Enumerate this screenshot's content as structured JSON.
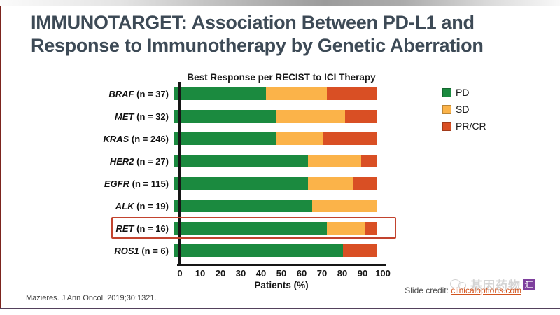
{
  "slide": {
    "title_line1": "IMMUNOTARGET: Association Between PD-L1 and",
    "title_line2": "Response to Immunotherapy by Genetic Aberration",
    "title_color": "#3d4a56"
  },
  "chart_data": {
    "type": "bar",
    "orientation": "horizontal",
    "stacked": true,
    "title": "Best Response per RECIST to ICI Therapy",
    "xlabel": "Patients (%)",
    "xlim": [
      0,
      100
    ],
    "x_ticks": [
      0,
      10,
      20,
      30,
      40,
      50,
      60,
      70,
      80,
      90,
      100
    ],
    "grid": false,
    "legend_position": "right",
    "categories": [
      {
        "gene": "BRAF",
        "n": 37
      },
      {
        "gene": "MET",
        "n": 32
      },
      {
        "gene": "KRAS",
        "n": 246
      },
      {
        "gene": "HER2",
        "n": 27
      },
      {
        "gene": "EGFR",
        "n": 115
      },
      {
        "gene": "ALK",
        "n": 19
      },
      {
        "gene": "RET",
        "n": 16
      },
      {
        "gene": "ROS1",
        "n": 6
      }
    ],
    "series": [
      {
        "name": "PD",
        "color": "#1b8a3f",
        "values": [
          45,
          50,
          50,
          66,
          66,
          68,
          75,
          83
        ]
      },
      {
        "name": "SD",
        "color": "#fbb349",
        "values": [
          30,
          34,
          23,
          26,
          22,
          32,
          19,
          0
        ]
      },
      {
        "name": "PR/CR",
        "color": "#d94f24",
        "values": [
          25,
          16,
          27,
          8,
          12,
          0,
          6,
          17
        ]
      }
    ],
    "highlighted_category": "RET",
    "highlight_color": "#c2432e"
  },
  "footer": {
    "citation": "Mazieres. J Ann Oncol. 2019;30:1321.",
    "credit_label": "Slide credit: ",
    "credit_link": "clinicaloptions.com"
  },
  "watermark": {
    "text": "基因药物",
    "badge": "汇"
  }
}
